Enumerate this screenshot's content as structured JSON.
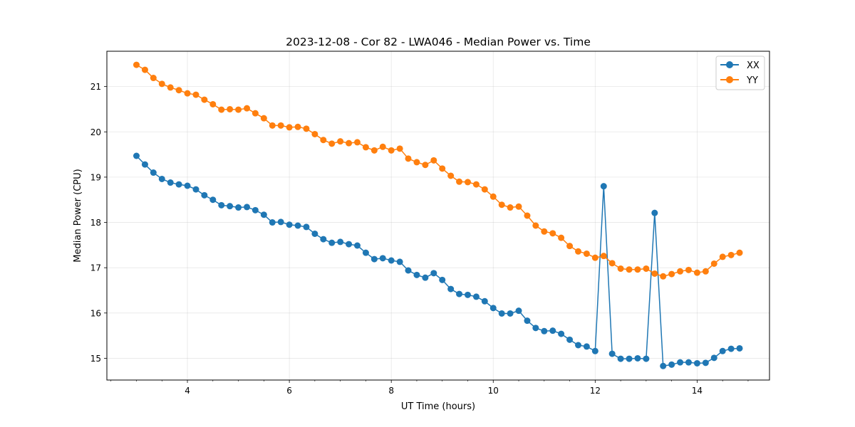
{
  "chart_data": {
    "type": "line",
    "title": "2023-12-08 - Cor 82 - LWA046 - Median Power vs. Time",
    "xlabel": "UT Time (hours)",
    "ylabel": "Median Power (CPU)",
    "xlim": [
      2.42,
      15.42
    ],
    "ylim": [
      14.52,
      21.78
    ],
    "xticks": [
      4,
      6,
      8,
      10,
      12,
      14
    ],
    "xtick_labels": [
      "4",
      "6",
      "8",
      "10",
      "12",
      "14"
    ],
    "xminor_step": 0.5,
    "yticks": [
      15,
      16,
      17,
      18,
      19,
      20,
      21
    ],
    "ytick_labels": [
      "15",
      "16",
      "17",
      "18",
      "19",
      "20",
      "21"
    ],
    "grid": true,
    "legend_position": "top-right",
    "x": [
      3.0,
      3.167,
      3.333,
      3.5,
      3.667,
      3.833,
      4.0,
      4.167,
      4.333,
      4.5,
      4.667,
      4.833,
      5.0,
      5.167,
      5.333,
      5.5,
      5.667,
      5.833,
      6.0,
      6.167,
      6.333,
      6.5,
      6.667,
      6.833,
      7.0,
      7.167,
      7.333,
      7.5,
      7.667,
      7.833,
      8.0,
      8.167,
      8.333,
      8.5,
      8.667,
      8.833,
      9.0,
      9.167,
      9.333,
      9.5,
      9.667,
      9.833,
      10.0,
      10.167,
      10.333,
      10.5,
      10.667,
      10.833,
      11.0,
      11.167,
      11.333,
      11.5,
      11.667,
      11.833,
      12.0,
      12.167,
      12.333,
      12.5,
      12.667,
      12.833,
      13.0,
      13.167,
      13.333,
      13.5,
      13.667,
      13.833,
      14.0,
      14.167,
      14.333,
      14.5,
      14.667,
      14.833
    ],
    "series": [
      {
        "name": "XX",
        "color": "#1f77b4",
        "values": [
          19.47,
          19.28,
          19.1,
          18.96,
          18.88,
          18.84,
          18.81,
          18.73,
          18.6,
          18.5,
          18.38,
          18.36,
          18.33,
          18.34,
          18.27,
          18.17,
          18.0,
          18.01,
          17.95,
          17.93,
          17.9,
          17.75,
          17.63,
          17.55,
          17.57,
          17.52,
          17.49,
          17.33,
          17.19,
          17.21,
          17.16,
          17.13,
          16.94,
          16.84,
          16.78,
          16.88,
          16.73,
          16.53,
          16.42,
          16.4,
          16.36,
          16.26,
          16.11,
          15.99,
          15.99,
          16.05,
          15.83,
          15.67,
          15.6,
          15.61,
          15.54,
          15.41,
          15.29,
          15.26,
          15.16,
          18.8,
          15.1,
          14.99,
          14.99,
          15.0,
          14.99,
          18.21,
          14.83,
          14.86,
          14.91,
          14.91,
          14.89,
          14.9,
          15.01,
          15.16,
          15.21,
          15.22
        ]
      },
      {
        "name": "YY",
        "color": "#ff7f0e",
        "values": [
          21.48,
          21.37,
          21.19,
          21.06,
          20.98,
          20.92,
          20.85,
          20.82,
          20.71,
          20.61,
          20.49,
          20.5,
          20.49,
          20.52,
          20.41,
          20.3,
          20.14,
          20.14,
          20.1,
          20.11,
          20.07,
          19.95,
          19.82,
          19.74,
          19.79,
          19.75,
          19.77,
          19.66,
          19.59,
          19.67,
          19.59,
          19.63,
          19.41,
          19.33,
          19.27,
          19.37,
          19.19,
          19.03,
          18.9,
          18.89,
          18.84,
          18.73,
          18.57,
          18.39,
          18.33,
          18.35,
          18.15,
          17.93,
          17.8,
          17.76,
          17.66,
          17.48,
          17.36,
          17.31,
          17.22,
          17.26,
          17.1,
          16.98,
          16.96,
          16.96,
          16.98,
          16.87,
          16.81,
          16.86,
          16.92,
          16.95,
          16.89,
          16.92,
          17.09,
          17.24,
          17.28,
          17.33
        ]
      }
    ]
  }
}
